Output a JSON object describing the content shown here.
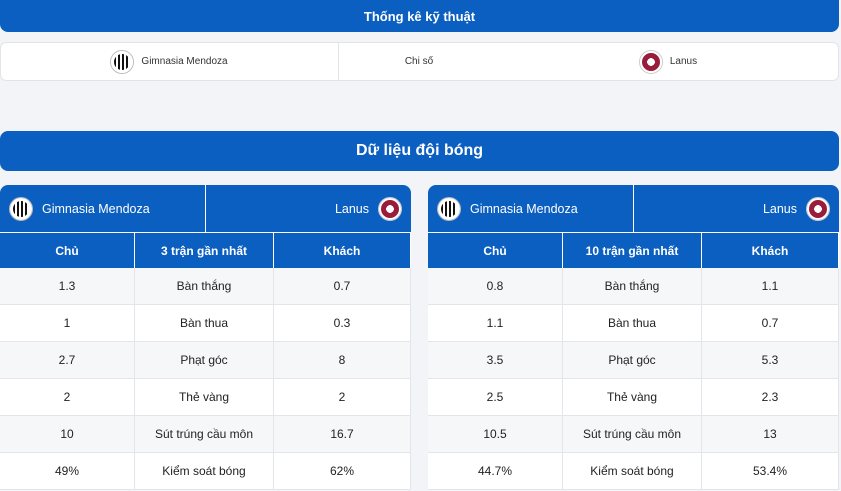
{
  "top": {
    "title": "Thống kê kỹ thuật",
    "home": "Gimnasia Mendoza",
    "middle": "Chi số",
    "away": "Lanus"
  },
  "section_title": "Dữ liệu đội bóng",
  "colors": {
    "primary": "#0b5fc1"
  },
  "tables": [
    {
      "home": "Gimnasia Mendoza",
      "away": "Lanus",
      "headers": [
        "Chủ",
        "3 trận gần nhất",
        "Khách"
      ],
      "rows": [
        [
          "1.3",
          "Bàn thắng",
          "0.7"
        ],
        [
          "1",
          "Bàn thua",
          "0.3"
        ],
        [
          "2.7",
          "Phạt góc",
          "8"
        ],
        [
          "2",
          "Thẻ vàng",
          "2"
        ],
        [
          "10",
          "Sút trúng cầu môn",
          "16.7"
        ],
        [
          "49%",
          "Kiểm soát bóng",
          "62%"
        ]
      ]
    },
    {
      "home": "Gimnasia Mendoza",
      "away": "Lanus",
      "headers": [
        "Chủ",
        "10 trận gần nhất",
        "Khách"
      ],
      "rows": [
        [
          "0.8",
          "Bàn thắng",
          "1.1"
        ],
        [
          "1.1",
          "Bàn thua",
          "0.7"
        ],
        [
          "3.5",
          "Phạt góc",
          "5.3"
        ],
        [
          "2.5",
          "Thẻ vàng",
          "2.3"
        ],
        [
          "10.5",
          "Sút trúng cầu môn",
          "13"
        ],
        [
          "44.7%",
          "Kiểm soát bóng",
          "53.4%"
        ]
      ]
    }
  ]
}
